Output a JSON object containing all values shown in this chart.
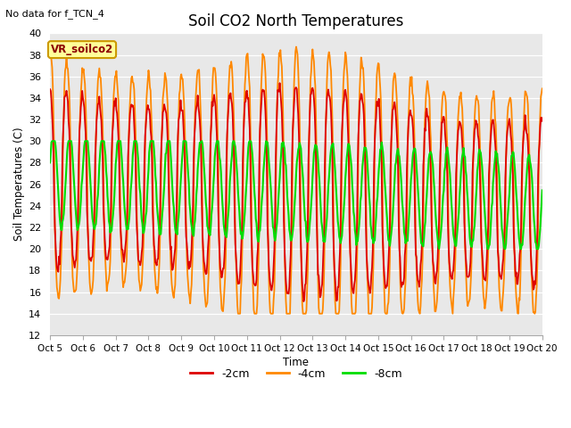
{
  "title": "Soil CO2 North Temperatures",
  "subtitle": "No data for f_TCN_4",
  "ylabel": "Soil Temperatures (C)",
  "xlabel": "Time",
  "ylim": [
    12,
    40
  ],
  "yticks": [
    12,
    14,
    16,
    18,
    20,
    22,
    24,
    26,
    28,
    30,
    32,
    34,
    36,
    38,
    40
  ],
  "xtick_labels": [
    "Oct 5",
    "Oct 6",
    "Oct 7",
    "Oct 8",
    "Oct 9",
    "Oct 10",
    "Oct 11",
    "Oct 12",
    "Oct 13",
    "Oct 14",
    "Oct 15",
    "Oct 16",
    "Oct 17",
    "Oct 18",
    "Oct 19",
    "Oct 20"
  ],
  "annotation_box": "VR_soilco2",
  "colors": {
    "neg2cm": "#dd0000",
    "neg4cm": "#ff8800",
    "neg8cm": "#00dd00"
  },
  "legend_labels": [
    "-2cm",
    "-4cm",
    "-8cm"
  ],
  "plot_bg_color": "#e8e8e8"
}
